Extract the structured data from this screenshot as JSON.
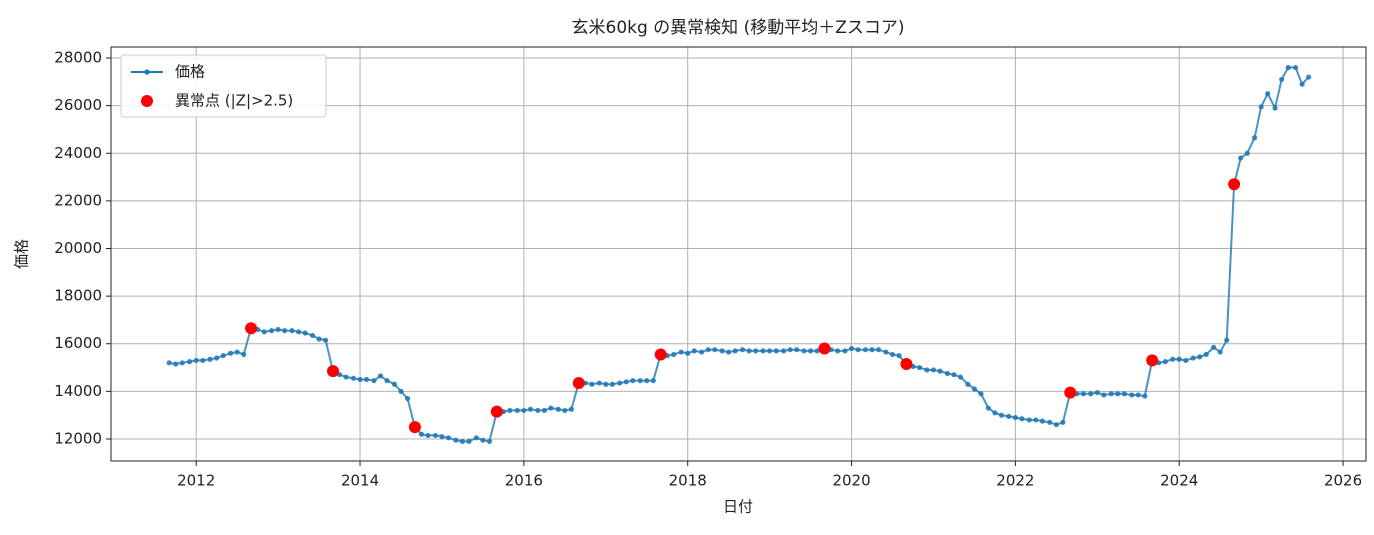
{
  "chart_data": {
    "type": "line",
    "title": "玄米60kg の異常検知 (移動平均＋Zスコア)",
    "x_label": "日付",
    "y_label": "価格",
    "xlim": [
      2010.96,
      2026.28
    ],
    "xticks": [
      2012,
      2014,
      2016,
      2018,
      2020,
      2022,
      2024,
      2026
    ],
    "ylim": [
      11076,
      28462
    ],
    "yticks": [
      12000,
      14000,
      16000,
      18000,
      20000,
      22000,
      24000,
      26000,
      28000
    ],
    "grid": true,
    "legend": "upper left",
    "series": [
      {
        "name": "価格",
        "color": "#1f77b4",
        "style": "line",
        "x": [
          2011.67,
          2011.75,
          2011.83,
          2011.92,
          2012,
          2012.08,
          2012.17,
          2012.25,
          2012.33,
          2012.42,
          2012.5,
          2012.58,
          2012.67,
          2012.75,
          2012.83,
          2012.92,
          2013,
          2013.08,
          2013.17,
          2013.25,
          2013.33,
          2013.42,
          2013.5,
          2013.58,
          2013.67,
          2013.75,
          2013.83,
          2013.92,
          2014,
          2014.08,
          2014.17,
          2014.25,
          2014.33,
          2014.42,
          2014.5,
          2014.58,
          2014.67,
          2014.75,
          2014.83,
          2014.92,
          2015,
          2015.08,
          2015.17,
          2015.25,
          2015.33,
          2015.42,
          2015.5,
          2015.58,
          2015.67,
          2015.75,
          2015.83,
          2015.92,
          2016,
          2016.08,
          2016.17,
          2016.25,
          2016.33,
          2016.42,
          2016.5,
          2016.58,
          2016.67,
          2016.75,
          2016.83,
          2016.92,
          2017,
          2017.08,
          2017.17,
          2017.25,
          2017.33,
          2017.42,
          2017.5,
          2017.58,
          2017.67,
          2017.75,
          2017.83,
          2017.92,
          2018,
          2018.08,
          2018.17,
          2018.25,
          2018.33,
          2018.42,
          2018.5,
          2018.58,
          2018.67,
          2018.75,
          2018.83,
          2018.92,
          2019,
          2019.08,
          2019.17,
          2019.25,
          2019.33,
          2019.42,
          2019.5,
          2019.58,
          2019.67,
          2019.75,
          2019.83,
          2019.92,
          2020,
          2020.08,
          2020.17,
          2020.25,
          2020.33,
          2020.42,
          2020.5,
          2020.58,
          2020.67,
          2020.75,
          2020.83,
          2020.92,
          2021,
          2021.08,
          2021.17,
          2021.25,
          2021.33,
          2021.42,
          2021.5,
          2021.58,
          2021.67,
          2021.75,
          2021.83,
          2021.92,
          2022,
          2022.08,
          2022.17,
          2022.25,
          2022.33,
          2022.42,
          2022.5,
          2022.58,
          2022.67,
          2022.75,
          2022.83,
          2022.92,
          2023,
          2023.08,
          2023.17,
          2023.25,
          2023.33,
          2023.42,
          2023.5,
          2023.58,
          2023.67,
          2023.75,
          2023.83,
          2023.92,
          2024,
          2024.08,
          2024.17,
          2024.25,
          2024.33,
          2024.42,
          2024.5,
          2024.58,
          2024.67,
          2024.75,
          2024.83,
          2024.92,
          2025,
          2025.08,
          2025.17,
          2025.25,
          2025.33,
          2025.42,
          2025.5,
          2025.58
        ],
        "values": [
          15200,
          15150,
          15200,
          15250,
          15300,
          15300,
          15350,
          15400,
          15500,
          15600,
          15650,
          15550,
          16650,
          16600,
          16500,
          16550,
          16600,
          16550,
          16550,
          16500,
          16450,
          16350,
          16200,
          16150,
          14850,
          14700,
          14600,
          14550,
          14500,
          14500,
          14450,
          14650,
          14450,
          14300,
          14000,
          13700,
          12500,
          12200,
          12150,
          12150,
          12100,
          12050,
          11950,
          11900,
          11900,
          12050,
          11950,
          11900,
          13150,
          13150,
          13200,
          13200,
          13200,
          13250,
          13200,
          13200,
          13300,
          13250,
          13200,
          13250,
          14350,
          14350,
          14300,
          14350,
          14300,
          14300,
          14350,
          14400,
          14450,
          14450,
          14450,
          14450,
          15550,
          15500,
          15550,
          15650,
          15600,
          15700,
          15650,
          15750,
          15750,
          15700,
          15650,
          15700,
          15750,
          15700,
          15700,
          15700,
          15700,
          15700,
          15700,
          15750,
          15750,
          15700,
          15700,
          15700,
          15800,
          15750,
          15700,
          15700,
          15800,
          15750,
          15750,
          15750,
          15750,
          15650,
          15550,
          15500,
          15150,
          15050,
          15000,
          14900,
          14900,
          14850,
          14750,
          14700,
          14600,
          14300,
          14100,
          13900,
          13300,
          13100,
          13000,
          12950,
          12900,
          12850,
          12800,
          12800,
          12750,
          12700,
          12600,
          12700,
          13950,
          13900,
          13900,
          13900,
          13950,
          13850,
          13900,
          13900,
          13900,
          13850,
          13850,
          13800,
          15300,
          15200,
          15250,
          15350,
          15350,
          15300,
          15400,
          15450,
          15550,
          15850,
          15650,
          16150,
          22700,
          23800,
          24000,
          24650,
          25950,
          26500,
          25900,
          27100,
          27600,
          27600,
          26900,
          27200
        ]
      },
      {
        "name": "異常点 (|Z|>2.5)",
        "color": "#ff0000",
        "style": "points",
        "x": [
          2012.67,
          2013.67,
          2014.67,
          2015.67,
          2016.67,
          2017.67,
          2019.67,
          2020.67,
          2022.67,
          2023.67,
          2024.67
        ],
        "values": [
          16650,
          14850,
          12500,
          13150,
          14350,
          15550,
          15800,
          15150,
          13950,
          15300,
          22700
        ]
      }
    ]
  }
}
